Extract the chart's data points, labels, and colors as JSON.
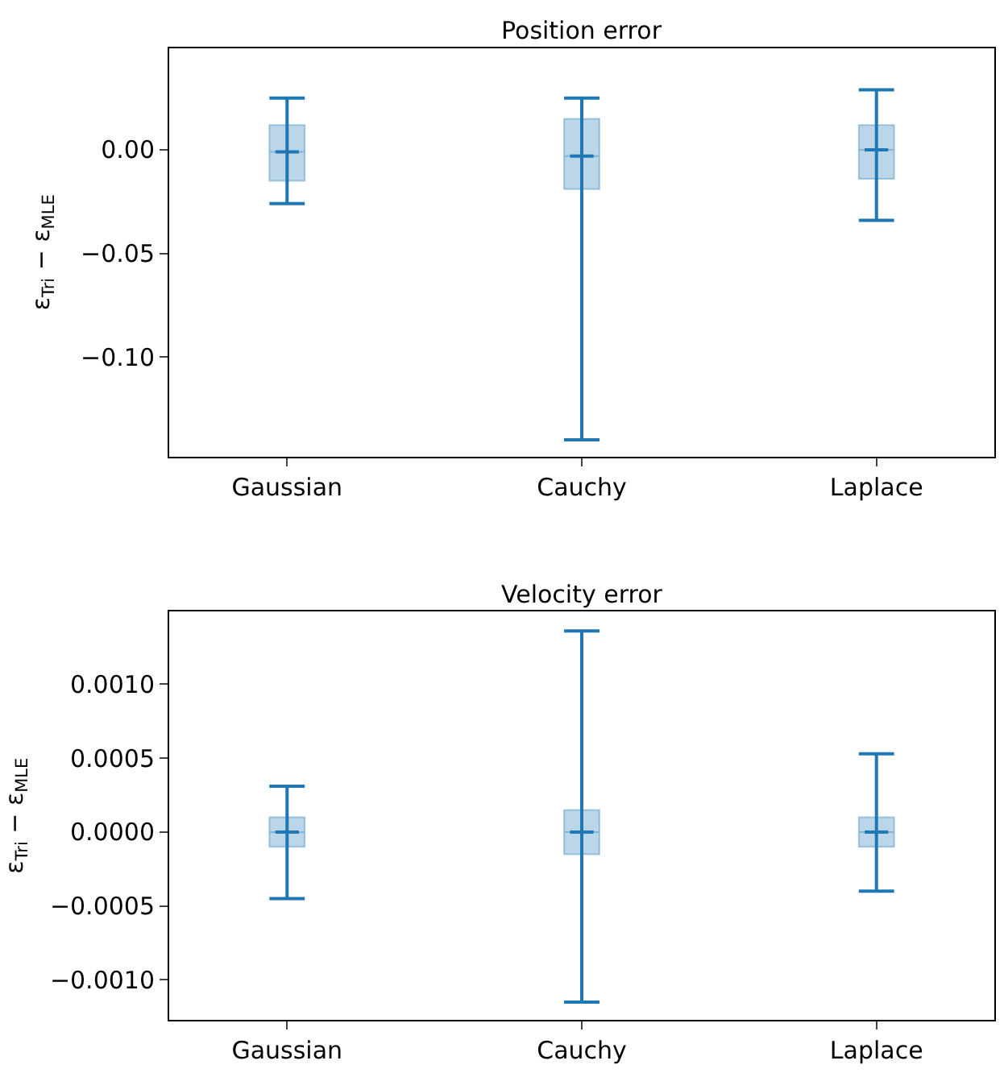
{
  "chart_data": [
    {
      "type": "box",
      "title": "Position error",
      "ylabel": "ε$_{Tri}$ − ε$_{MLE}$",
      "categories": [
        "Gaussian",
        "Cauchy",
        "Laplace"
      ],
      "color": "#1f77b4",
      "boxes": [
        {
          "low": -0.026,
          "q1": -0.015,
          "median": -0.001,
          "q3": 0.012,
          "high": 0.025
        },
        {
          "low": -0.14,
          "q1": -0.019,
          "median": -0.003,
          "q3": 0.015,
          "high": 0.025
        },
        {
          "low": -0.034,
          "q1": -0.014,
          "median": 0.0,
          "q3": 0.012,
          "high": 0.029
        }
      ],
      "ylim": [
        -0.148,
        0.049
      ],
      "yticks": [
        {
          "value": 0,
          "label": "0.00"
        },
        {
          "value": -0.05,
          "label": "−0.05"
        },
        {
          "value": -0.1,
          "label": "−0.10"
        }
      ]
    },
    {
      "type": "box",
      "title": "Velocity error",
      "ylabel": "ε$_{Tri}$ − ε$_{MLE}$",
      "categories": [
        "Gaussian",
        "Cauchy",
        "Laplace"
      ],
      "color": "#1f77b4",
      "boxes": [
        {
          "low": -0.00045,
          "q1": -0.0001,
          "median": 0.0,
          "q3": 0.0001,
          "high": 0.00031
        },
        {
          "low": -0.00115,
          "q1": -0.00015,
          "median": 0.0,
          "q3": 0.00015,
          "high": 0.00136
        },
        {
          "low": -0.0004,
          "q1": -0.0001,
          "median": 0.0,
          "q3": 0.0001,
          "high": 0.00053
        }
      ],
      "ylim": [
        -0.00127,
        0.00149
      ],
      "yticks": [
        {
          "value": 0.001,
          "label": "0.0010"
        },
        {
          "value": 0.0005,
          "label": "0.0005"
        },
        {
          "value": 0,
          "label": "0.0000"
        },
        {
          "value": -0.0005,
          "label": "−0.0005"
        },
        {
          "value": -0.001,
          "label": "−0.0010"
        }
      ]
    }
  ]
}
